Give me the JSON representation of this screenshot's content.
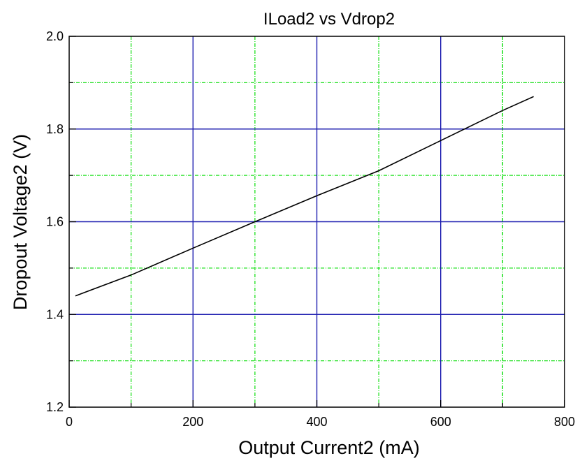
{
  "chart_data": {
    "type": "line",
    "title": "ILoad2 vs Vdrop2",
    "xlabel": "Output Current2 (mA)",
    "ylabel": "Dropout Voltage2 (V)",
    "xlim": [
      0,
      800
    ],
    "ylim": [
      1.2,
      2.0
    ],
    "x_ticks": [
      0,
      200,
      400,
      600,
      800
    ],
    "x_tick_labels": [
      "0",
      "200",
      "400",
      "600",
      "800"
    ],
    "y_ticks": [
      1.2,
      1.4,
      1.6,
      1.8,
      2.0
    ],
    "y_tick_labels": [
      "1.2",
      "1.4",
      "1.6",
      "1.8",
      "2.0"
    ],
    "x_minor_ticks": [
      100,
      300,
      500,
      700
    ],
    "y_minor_ticks": [
      1.3,
      1.5,
      1.7,
      1.9
    ],
    "grid": true,
    "colors": {
      "major_grid": "#1f1fb0",
      "minor_grid": "#1ee01e",
      "line": "#000000",
      "frame": "#000000"
    },
    "series": [
      {
        "x": [
          10,
          100,
          200,
          300,
          400,
          500,
          600,
          700,
          750
        ],
        "y": [
          1.44,
          1.485,
          1.543,
          1.6,
          1.656,
          1.71,
          1.775,
          1.84,
          1.87
        ]
      }
    ]
  }
}
